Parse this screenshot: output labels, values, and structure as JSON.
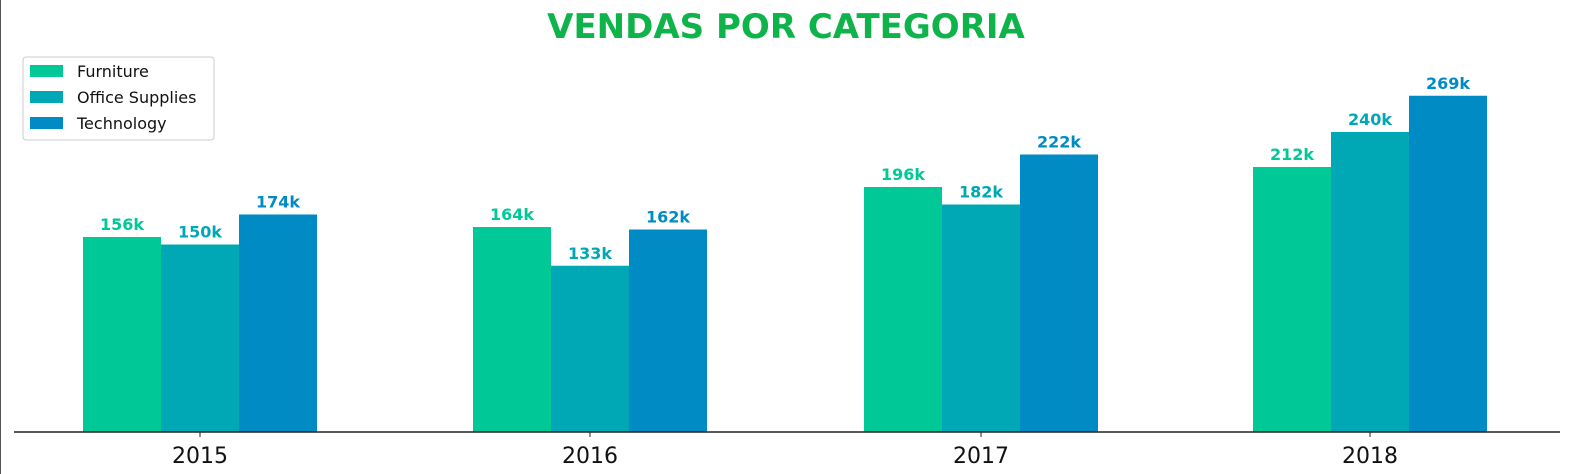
{
  "chart_data": {
    "type": "bar",
    "title": "VENDAS POR CATEGORIA",
    "xlabel": "",
    "ylabel": "",
    "categories": [
      "2015",
      "2016",
      "2017",
      "2018"
    ],
    "series": [
      {
        "name": "Furniture",
        "color": "#00c896",
        "values": [
          156000,
          164000,
          196000,
          212000
        ],
        "labels": [
          "156k",
          "164k",
          "196k",
          "212k"
        ]
      },
      {
        "name": "Office Supplies",
        "color": "#00a8b5",
        "values": [
          150000,
          133000,
          182000,
          240000
        ],
        "labels": [
          "150k",
          "133k",
          "182k",
          "240k"
        ]
      },
      {
        "name": "Technology",
        "color": "#008bc4",
        "values": [
          174000,
          162000,
          222000,
          269000
        ],
        "labels": [
          "174k",
          "162k",
          "222k",
          "269k"
        ]
      }
    ],
    "ylim": [
      0,
      280000
    ],
    "grid": false,
    "legend": "top-left",
    "title_color": "#0eb34a"
  }
}
